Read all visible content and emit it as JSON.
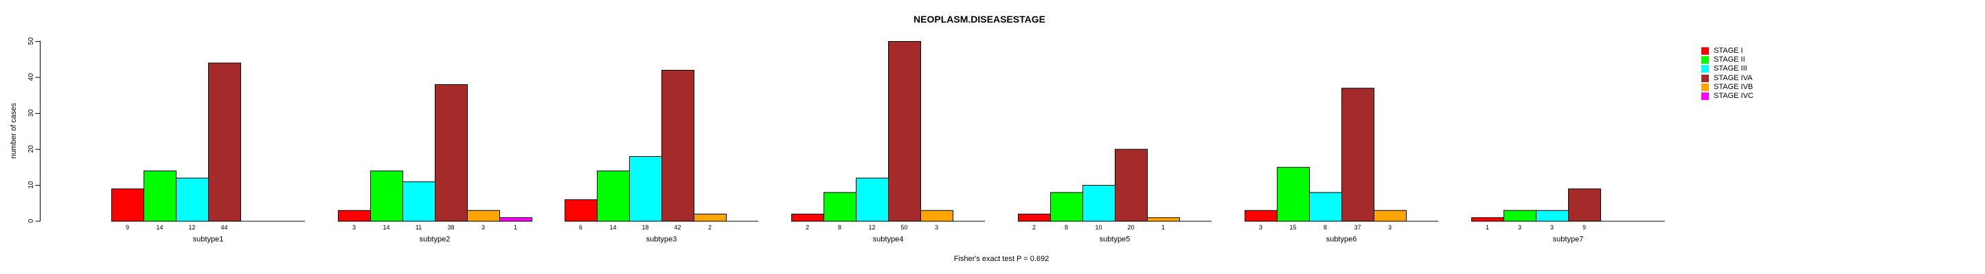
{
  "chart_data": {
    "type": "bar",
    "title": "NEOPLASM.DISEASESTAGE",
    "xlabel": "",
    "ylabel": "number of cases",
    "footnote": "Fisher's exact test P = 0.692",
    "ylim": [
      0,
      50
    ],
    "yticks": [
      0,
      10,
      20,
      30,
      40,
      50
    ],
    "grid": false,
    "legend_position": "right",
    "bar_border_color": "#000000",
    "axis_color": "#000000",
    "categories": [
      "subtype1",
      "subtype2",
      "subtype3",
      "subtype4",
      "subtype5",
      "subtype6",
      "subtype7"
    ],
    "series": [
      {
        "name": "STAGE I",
        "color": "#FF0000",
        "values": [
          9,
          3,
          6,
          2,
          2,
          3,
          1
        ]
      },
      {
        "name": "STAGE II",
        "color": "#00FF00",
        "values": [
          14,
          14,
          14,
          8,
          8,
          15,
          3
        ]
      },
      {
        "name": "STAGE III",
        "color": "#00FFFF",
        "values": [
          12,
          11,
          18,
          12,
          10,
          8,
          3
        ]
      },
      {
        "name": "STAGE IVA",
        "color": "#A52A2A",
        "values": [
          44,
          38,
          42,
          50,
          20,
          37,
          9
        ]
      },
      {
        "name": "STAGE IVB",
        "color": "#FFA500",
        "values": [
          0,
          3,
          2,
          3,
          1,
          3,
          0
        ]
      },
      {
        "name": "STAGE IVC",
        "color": "#FF00FF",
        "values": [
          0,
          1,
          0,
          0,
          0,
          0,
          0
        ]
      }
    ],
    "bar_value_labels_shown": true
  }
}
